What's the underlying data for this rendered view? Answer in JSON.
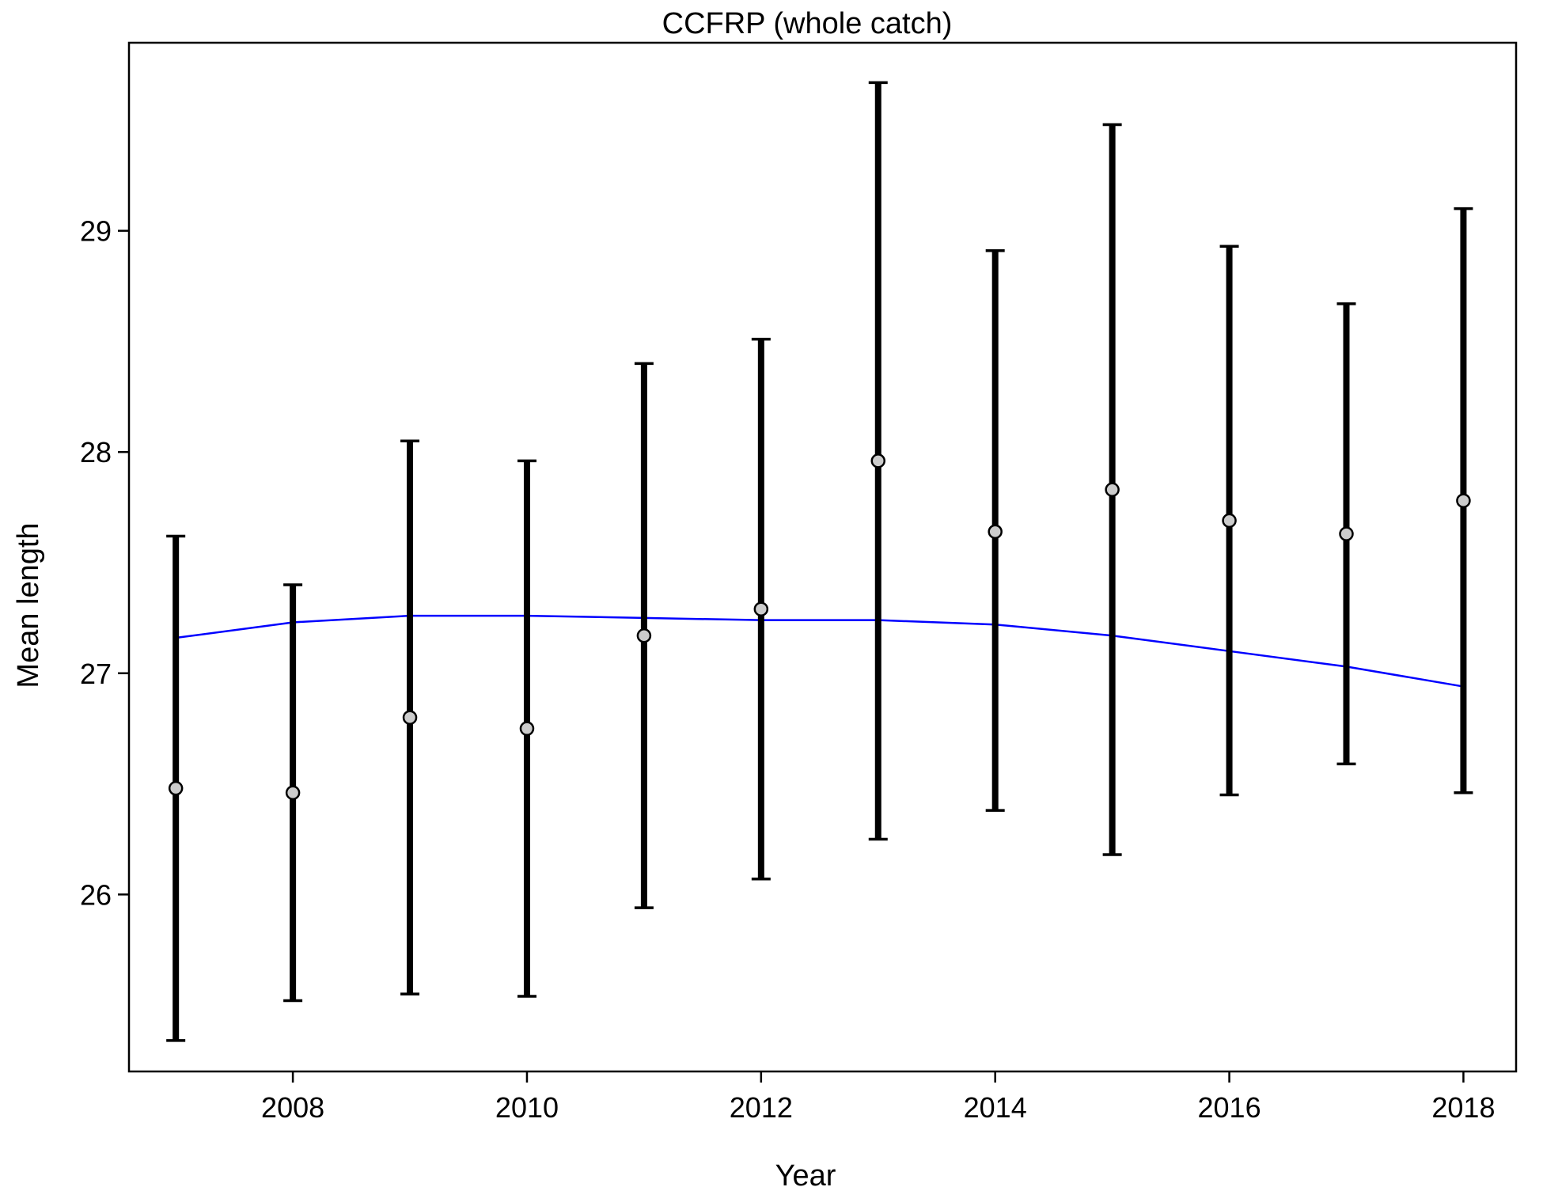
{
  "chart_data": {
    "type": "scatter",
    "title": "CCFRP (whole catch)",
    "xlabel": "Year",
    "ylabel": "Mean length",
    "xlim": [
      2006.6,
      2018.45
    ],
    "ylim": [
      25.2,
      29.85
    ],
    "x_ticks": [
      2008,
      2010,
      2012,
      2014,
      2016,
      2018
    ],
    "y_ticks": [
      26,
      27,
      28,
      29
    ],
    "grid": false,
    "series": [
      {
        "kind": "points_with_error_bars",
        "color": "#000000",
        "point_fill": "#cccccc",
        "points": [
          {
            "x": 2007,
            "y": 26.48,
            "lower": 25.34,
            "upper": 27.62
          },
          {
            "x": 2008,
            "y": 26.46,
            "lower": 25.52,
            "upper": 27.4
          },
          {
            "x": 2009,
            "y": 26.8,
            "lower": 25.55,
            "upper": 28.05
          },
          {
            "x": 2010,
            "y": 26.75,
            "lower": 25.54,
            "upper": 27.96
          },
          {
            "x": 2011,
            "y": 27.17,
            "lower": 25.94,
            "upper": 28.4
          },
          {
            "x": 2012,
            "y": 27.29,
            "lower": 26.07,
            "upper": 28.51
          },
          {
            "x": 2013,
            "y": 27.96,
            "lower": 26.25,
            "upper": 29.67
          },
          {
            "x": 2014,
            "y": 27.64,
            "lower": 26.38,
            "upper": 28.91
          },
          {
            "x": 2015,
            "y": 27.83,
            "lower": 26.18,
            "upper": 29.48
          },
          {
            "x": 2016,
            "y": 27.69,
            "lower": 26.45,
            "upper": 28.93
          },
          {
            "x": 2017,
            "y": 27.63,
            "lower": 26.59,
            "upper": 28.67
          },
          {
            "x": 2018,
            "y": 27.78,
            "lower": 26.46,
            "upper": 29.1
          }
        ]
      },
      {
        "kind": "smoother_line",
        "color": "#0000ff",
        "points": [
          {
            "x": 2007,
            "y": 27.16
          },
          {
            "x": 2008,
            "y": 27.23
          },
          {
            "x": 2009,
            "y": 27.26
          },
          {
            "x": 2010,
            "y": 27.26
          },
          {
            "x": 2011,
            "y": 27.25
          },
          {
            "x": 2012,
            "y": 27.24
          },
          {
            "x": 2013,
            "y": 27.24
          },
          {
            "x": 2014,
            "y": 27.22
          },
          {
            "x": 2015,
            "y": 27.17
          },
          {
            "x": 2016,
            "y": 27.1
          },
          {
            "x": 2017,
            "y": 27.03
          },
          {
            "x": 2018,
            "y": 26.94
          }
        ]
      }
    ]
  }
}
